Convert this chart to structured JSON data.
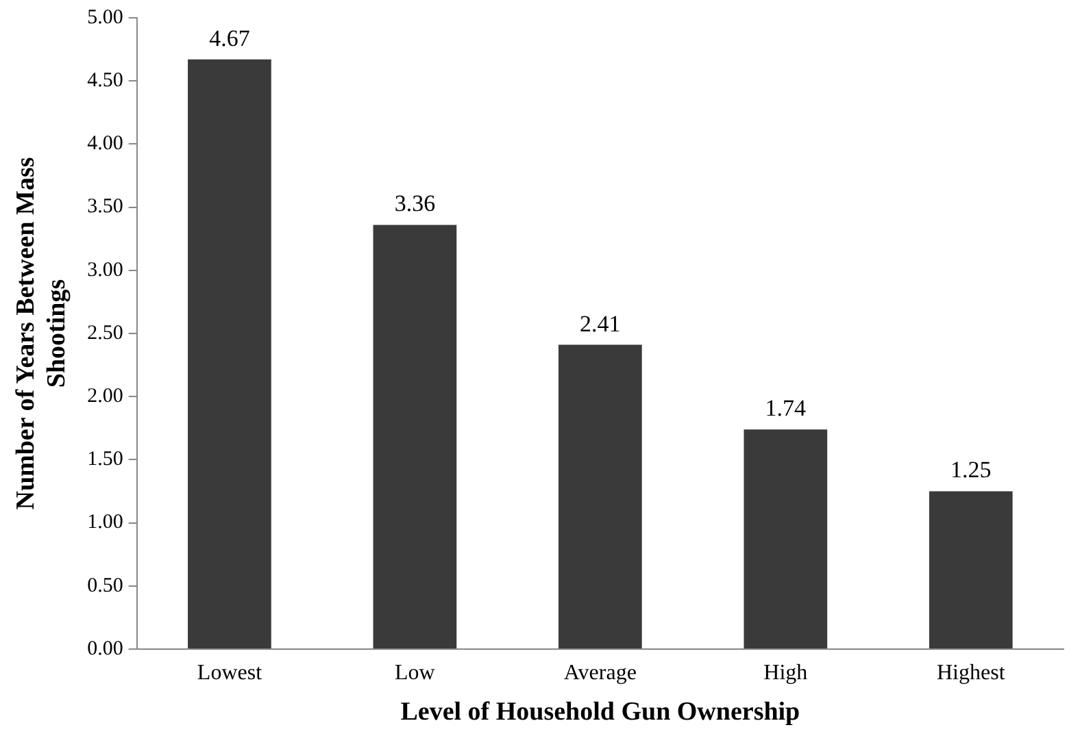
{
  "chart_data": {
    "type": "bar",
    "xlabel": "Level of Household Gun Ownership",
    "ylabel": "Number of Years Between Mass Shootings",
    "categories": [
      "Lowest",
      "Low",
      "Average",
      "High",
      "Highest"
    ],
    "values": [
      4.67,
      3.36,
      2.41,
      1.74,
      1.25
    ],
    "color": "#3a3a3a",
    "ylim": [
      0,
      5
    ],
    "yticks": [
      {
        "value": 0,
        "label": "0.00"
      },
      {
        "value": 0.5,
        "label": "0.50"
      },
      {
        "value": 1,
        "label": "1.00"
      },
      {
        "value": 1.5,
        "label": "1.50"
      },
      {
        "value": 2,
        "label": "2.00"
      },
      {
        "value": 2.5,
        "label": "2.50"
      },
      {
        "value": 3,
        "label": "3.00"
      },
      {
        "value": 3.5,
        "label": "3.50"
      },
      {
        "value": 4,
        "label": "4.00"
      },
      {
        "value": 4.5,
        "label": "4.50"
      },
      {
        "value": 5,
        "label": "5.00"
      }
    ],
    "data_labels": true,
    "grid": false,
    "legend": false
  }
}
